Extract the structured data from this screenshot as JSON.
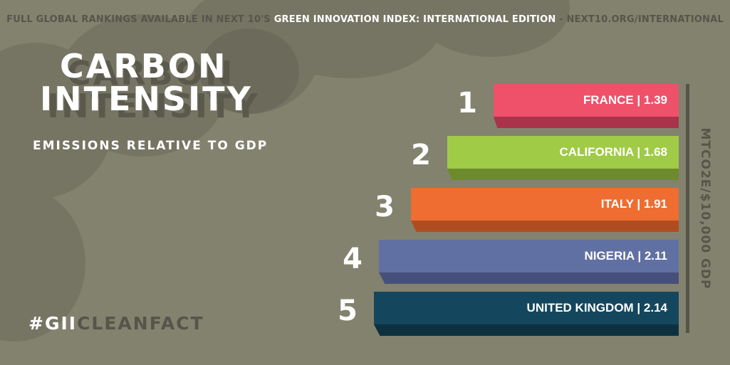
{
  "header": {
    "prefix": "FULL GLOBAL RANKINGS AVAILABLE IN NEXT 10'S ",
    "highlight": "GREEN INNOVATION INDEX: INTERNATIONAL EDITION",
    "suffix": " - NEXT10.ORG/INTERNATIONAL"
  },
  "title": {
    "line1": "CARBON",
    "line2": "INTENSITY",
    "subtitle": "EMISSIONS RELATIVE TO GDP"
  },
  "hashtag": {
    "prefix": "#",
    "highlight": "GII",
    "suffix": "CLEANFACT"
  },
  "chart_data": {
    "type": "bar",
    "orientation": "horizontal",
    "title": "CARBON INTENSITY",
    "subtitle": "EMISSIONS RELATIVE TO GDP",
    "unit_label": "MTCO2E/$10,000 GDP",
    "categories": [
      "FRANCE",
      "CALIFORNIA",
      "ITALY",
      "NIGERIA",
      "UNITED KINGDOM"
    ],
    "ranks": [
      "1",
      "2",
      "3",
      "4",
      "5"
    ],
    "values": [
      1.39,
      1.68,
      1.91,
      2.11,
      2.14
    ],
    "value_labels": [
      "1.39",
      "1.68",
      "1.91",
      "2.11",
      "2.14"
    ],
    "colors": [
      "#ef506a",
      "#9fcb46",
      "#ef6d31",
      "#6170a3",
      "#14475d"
    ],
    "side_colors": [
      "#a8334a",
      "#6d8a2c",
      "#b04d20",
      "#45507a",
      "#0e3140"
    ],
    "legend": "none",
    "grid": false
  },
  "colors": {
    "background": "#83826f",
    "dark_text": "#56554a",
    "light_text": "#ffffff"
  }
}
